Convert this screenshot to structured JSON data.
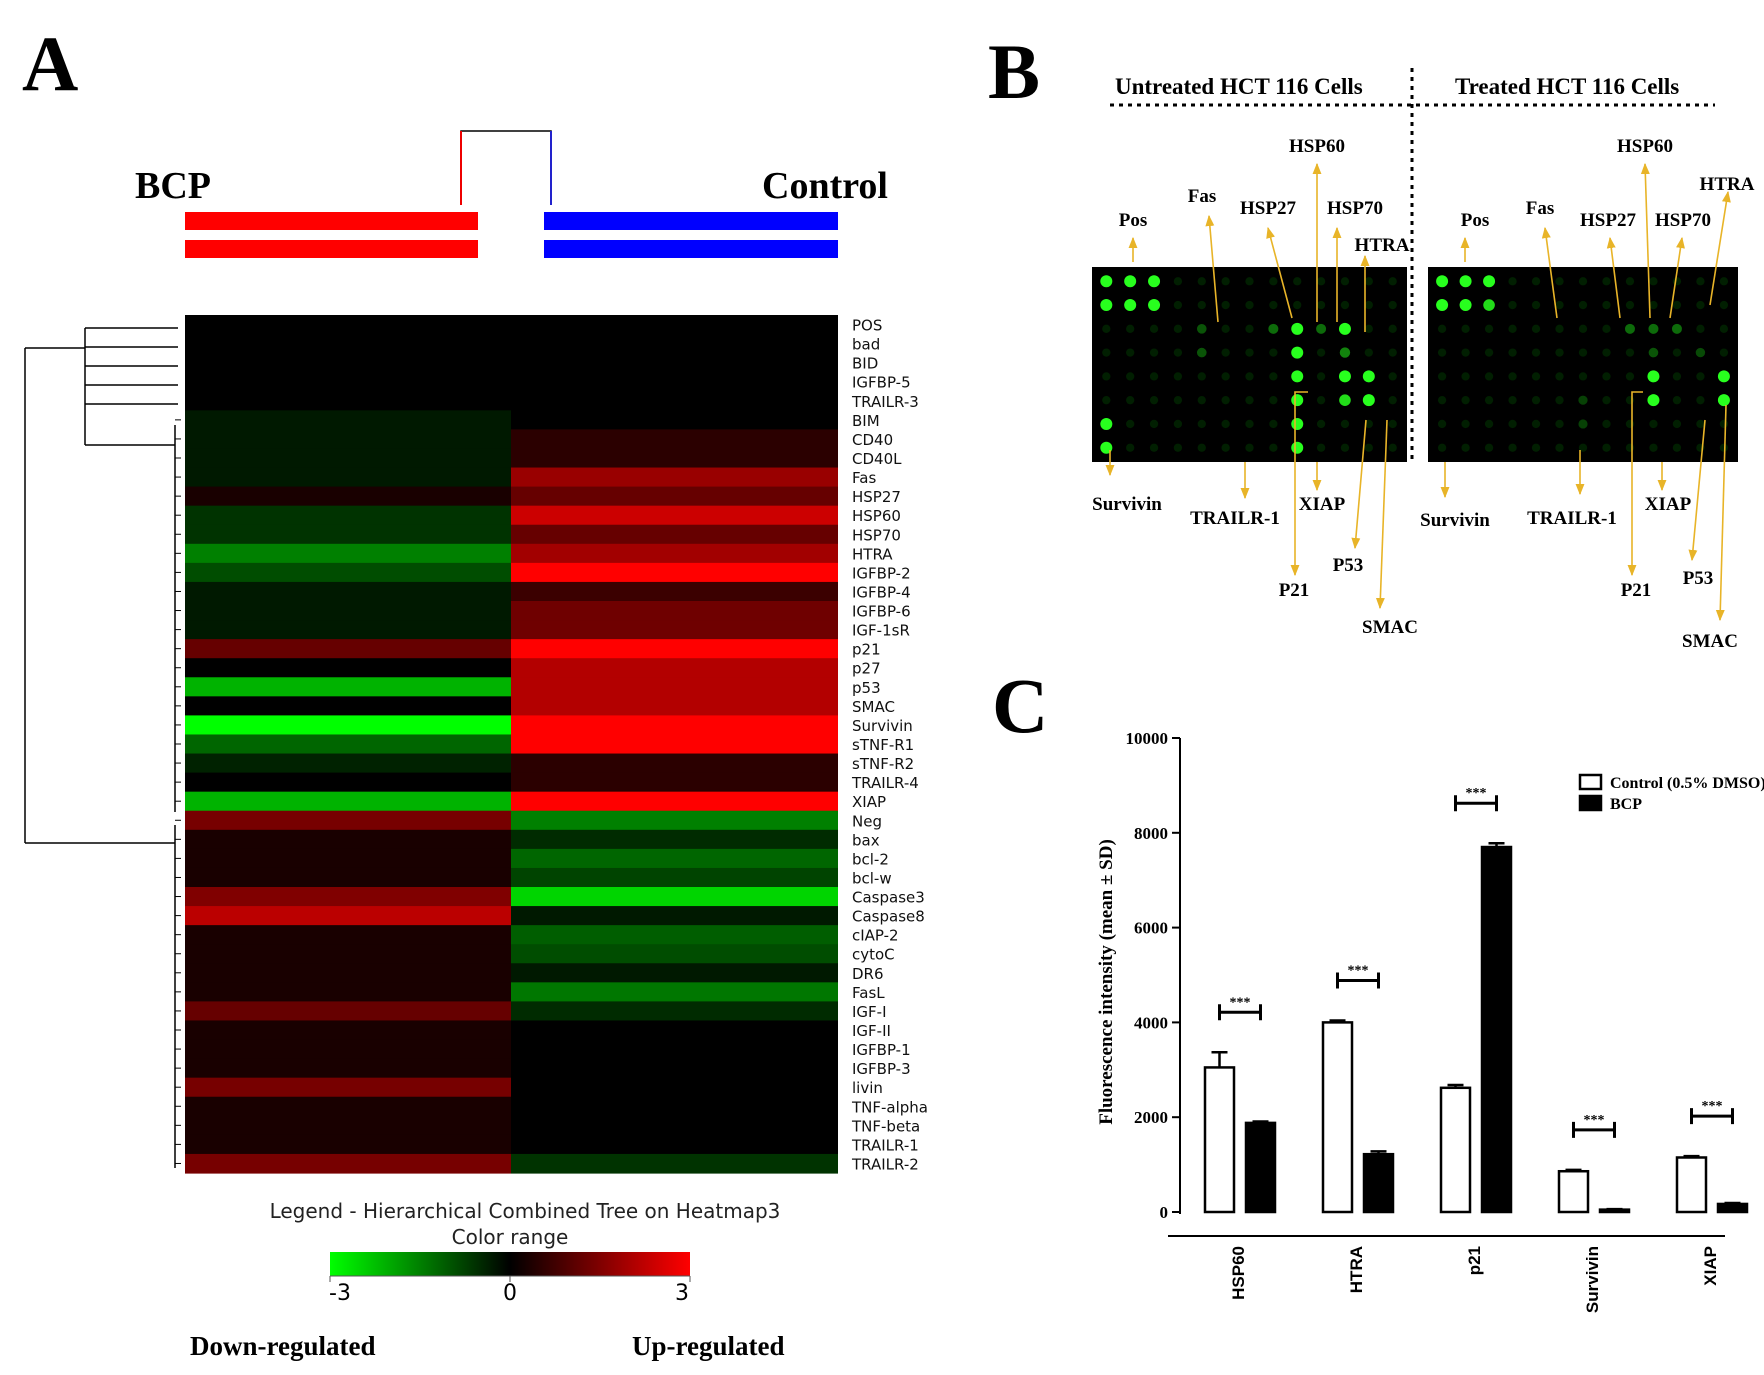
{
  "panel_a": {
    "letter": "A",
    "group_left": "BCP",
    "group_right": "Control",
    "genes": [
      "POS",
      "bad",
      "BID",
      "IGFBP-5",
      "TRAILR-3",
      "BIM",
      "CD40",
      "CD40L",
      "Fas",
      "HSP27",
      "HSP60",
      "HSP70",
      "HTRA",
      "IGFBP-2",
      "IGFBP-4",
      "IGFBP-6",
      "IGF-1sR",
      "p21",
      "p27",
      "p53",
      "SMAC",
      "Survivin",
      "sTNF-R1",
      "sTNF-R2",
      "TRAILR-4",
      "XIAP",
      "Neg",
      "bax",
      "bcl-2",
      "bcl-w",
      "Caspase3",
      "Caspase8",
      "cIAP-2",
      "cytoC",
      "DR6",
      "FasL",
      "IGF-I",
      "IGF-II",
      "IGFBP-1",
      "IGFBP-3",
      "livin",
      "TNF-alpha",
      "TNF-beta",
      "TRAILR-1",
      "TRAILR-2"
    ],
    "bcp_values": [
      0,
      0,
      0,
      0,
      0,
      -0.3,
      -0.3,
      -0.3,
      -0.3,
      0.3,
      -0.6,
      -0.6,
      -1.5,
      -0.9,
      -0.3,
      -0.3,
      -0.3,
      1.2,
      0,
      -2.1,
      0,
      -3,
      -1.2,
      -0.4,
      0,
      -2.1,
      1.4,
      0.3,
      0.3,
      0.3,
      1.5,
      2.2,
      0.3,
      0.3,
      0.3,
      0.3,
      1.2,
      0.3,
      0.3,
      0.3,
      1.4,
      0.3,
      0.3,
      0.3,
      1.4
    ],
    "control_values": [
      0,
      0,
      0,
      0,
      0,
      0,
      0.5,
      0.5,
      1.8,
      1.2,
      2.4,
      1.2,
      1.9,
      3,
      0.7,
      1.3,
      1.3,
      3,
      2.1,
      2.1,
      2.1,
      3,
      3,
      0.5,
      0.5,
      3,
      -1.5,
      -0.5,
      -1.2,
      -0.8,
      -2.5,
      -0.3,
      -1.1,
      -0.9,
      -0.3,
      -1.4,
      -0.5,
      0,
      0,
      0,
      0,
      0,
      0,
      0,
      -0.6
    ],
    "legend_title": "Legend - Hierarchical Combined Tree on Heatmap3",
    "color_range_label": "Color range",
    "scale_min": "-3",
    "scale_mid": "0",
    "scale_max": "3",
    "down_label": "Down-regulated",
    "up_label": "Up-regulated"
  },
  "panel_b": {
    "letter": "B",
    "untreated_title": "Untreated HCT 116 Cells",
    "treated_title": "Treated HCT 116 Cells",
    "untreated_labels": {
      "pos": "Pos",
      "fas": "Fas",
      "hsp27": "HSP27",
      "hsp60": "HSP60",
      "hsp70": "HSP70",
      "htra": "HTRA",
      "survivin": "Survivin",
      "trailr1": "TRAILR-1",
      "xiap": "XIAP",
      "p21": "P21",
      "p53": "P53",
      "smac": "SMAC"
    },
    "treated_labels": {
      "pos": "Pos",
      "fas": "Fas",
      "hsp27": "HSP27",
      "hsp60": "HSP60",
      "hsp70": "HSP70",
      "htra": "HTRA",
      "survivin": "Survivin",
      "trailr1": "TRAILR-1",
      "xiap": "XIAP",
      "p21": "P21",
      "p53": "P53",
      "smac": "SMAC"
    }
  },
  "panel_c": {
    "letter": "C",
    "significance": "***",
    "chart_data": {
      "type": "bar",
      "categories": [
        "HSP60",
        "HTRA",
        "p21",
        "Survivin",
        "XIAP"
      ],
      "series": [
        {
          "name": "Control (0.5% DMSO)",
          "values": [
            3050,
            4000,
            2620,
            860,
            1150
          ],
          "errors": [
            320,
            40,
            60,
            30,
            30
          ],
          "fill": "#ffffff"
        },
        {
          "name": "BCP",
          "values": [
            1880,
            1220,
            7700,
            50,
            170
          ],
          "errors": [
            30,
            60,
            80,
            10,
            20
          ],
          "fill": "#000000"
        }
      ],
      "ylabel": "Fluorescence intensity (mean ± SD)",
      "xlabel": "",
      "ylim": [
        0,
        10000
      ],
      "yticks": [
        0,
        2000,
        4000,
        6000,
        8000,
        10000
      ],
      "legend": "top-right"
    }
  }
}
